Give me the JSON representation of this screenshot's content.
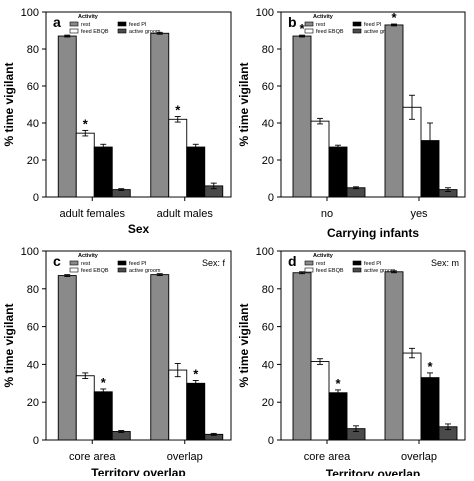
{
  "figure": {
    "y_ticks": [
      "0",
      "20",
      "40",
      "60",
      "80",
      "100"
    ],
    "legend": {
      "title": "Activity",
      "entries": [
        {
          "label": "rest",
          "color": "#8a8a8a"
        },
        {
          "label": "feed PI",
          "color": "#000000"
        },
        {
          "label": "feed EBQB",
          "color": "#ffffff"
        },
        {
          "label": "active groom",
          "color": "#4a4a4a"
        }
      ]
    }
  },
  "chart_data": [
    {
      "type": "bar",
      "panel_letter": "a",
      "ylabel": "% time vigilant",
      "xlabel": "Sex",
      "note": "",
      "ylim": [
        0,
        100
      ],
      "categories": [
        "adult females",
        "adult males"
      ],
      "series": [
        {
          "name": "rest",
          "color": "#8a8a8a",
          "values": [
            87,
            88.5
          ],
          "errors": [
            0.5,
            0.5
          ]
        },
        {
          "name": "feed EBQB",
          "color": "#ffffff",
          "values": [
            34.5,
            42
          ],
          "errors": [
            1.5,
            1.5
          ]
        },
        {
          "name": "feed PI",
          "color": "#000000",
          "values": [
            27,
            27
          ],
          "errors": [
            1.5,
            1.5
          ]
        },
        {
          "name": "active groom",
          "color": "#4a4a4a",
          "values": [
            4,
            6
          ],
          "errors": [
            0.5,
            1.5
          ]
        }
      ],
      "significance": [
        {
          "category": 0,
          "series": 1
        },
        {
          "category": 1,
          "series": 1
        }
      ]
    },
    {
      "type": "bar",
      "panel_letter": "b",
      "ylabel": "% time vigilant",
      "xlabel": "Carrying infants",
      "note": "",
      "ylim": [
        0,
        100
      ],
      "categories": [
        "no",
        "yes"
      ],
      "series": [
        {
          "name": "rest",
          "color": "#8a8a8a",
          "values": [
            87,
            93
          ],
          "errors": [
            0.5,
            0.5
          ]
        },
        {
          "name": "feed EBQB",
          "color": "#ffffff",
          "values": [
            41,
            48.5
          ],
          "errors": [
            1.5,
            6.5
          ]
        },
        {
          "name": "feed PI",
          "color": "#000000",
          "values": [
            27,
            30.5
          ],
          "errors": [
            1,
            9.5
          ]
        },
        {
          "name": "active groom",
          "color": "#4a4a4a",
          "values": [
            5,
            4
          ],
          "errors": [
            0.5,
            1
          ]
        }
      ],
      "significance": [
        {
          "category": 0,
          "series": 0
        },
        {
          "category": 1,
          "series": 0
        }
      ]
    },
    {
      "type": "bar",
      "panel_letter": "c",
      "ylabel": "% time vigilant",
      "xlabel": "Territory overlap",
      "note": "Sex: f",
      "ylim": [
        0,
        100
      ],
      "categories": [
        "core area",
        "overlap"
      ],
      "series": [
        {
          "name": "rest",
          "color": "#8a8a8a",
          "values": [
            87,
            87.5
          ],
          "errors": [
            0.5,
            0.5
          ]
        },
        {
          "name": "feed EBQB",
          "color": "#ffffff",
          "values": [
            34,
            37
          ],
          "errors": [
            1.5,
            3.5
          ]
        },
        {
          "name": "feed PI",
          "color": "#000000",
          "values": [
            25.5,
            30
          ],
          "errors": [
            1.5,
            1.5
          ]
        },
        {
          "name": "active groom",
          "color": "#4a4a4a",
          "values": [
            4.5,
            3
          ],
          "errors": [
            0.5,
            0.5
          ]
        }
      ],
      "significance": [
        {
          "category": 0,
          "series": 2
        },
        {
          "category": 1,
          "series": 2
        }
      ]
    },
    {
      "type": "bar",
      "panel_letter": "d",
      "ylabel": "% time vigilant",
      "xlabel": "Territory overlap",
      "note": "Sex: m",
      "ylim": [
        0,
        100
      ],
      "categories": [
        "core area",
        "overlap"
      ],
      "series": [
        {
          "name": "rest",
          "color": "#8a8a8a",
          "values": [
            88.5,
            89
          ],
          "errors": [
            0.5,
            0.5
          ]
        },
        {
          "name": "feed EBQB",
          "color": "#ffffff",
          "values": [
            41.5,
            46
          ],
          "errors": [
            1.5,
            2.5
          ]
        },
        {
          "name": "feed PI",
          "color": "#000000",
          "values": [
            25,
            33
          ],
          "errors": [
            1.5,
            2.5
          ]
        },
        {
          "name": "active groom",
          "color": "#4a4a4a",
          "values": [
            6,
            7
          ],
          "errors": [
            1.5,
            1.5
          ]
        }
      ],
      "significance": [
        {
          "category": 0,
          "series": 2
        },
        {
          "category": 1,
          "series": 2
        }
      ]
    }
  ]
}
